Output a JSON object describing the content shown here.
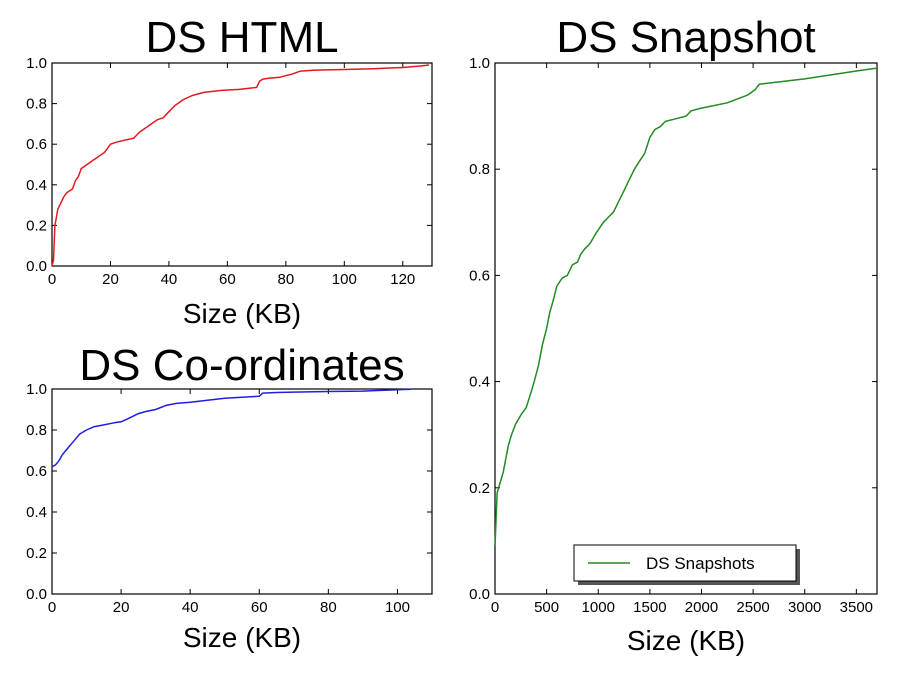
{
  "chart_data": [
    {
      "type": "line",
      "title": "DS HTML",
      "xlabel": "Size (KB)",
      "ylabel": "",
      "xlim": [
        0,
        130
      ],
      "ylim": [
        0.0,
        1.0
      ],
      "xticks": [
        "0",
        "20",
        "40",
        "60",
        "80",
        "100",
        "120"
      ],
      "yticks": [
        "0.0",
        "0.2",
        "0.4",
        "0.6",
        "0.8",
        "1.0"
      ],
      "grid": false,
      "legend": null,
      "color": "#e31a1c",
      "series": [
        {
          "x": [
            0,
            0.5,
            1,
            1.5,
            2,
            3,
            4,
            5,
            6,
            7,
            8,
            9,
            10,
            12,
            14,
            16,
            18,
            19,
            20,
            22,
            25,
            28,
            30,
            32,
            34,
            36,
            38,
            40,
            42,
            45,
            48,
            52,
            58,
            64,
            70,
            71,
            72,
            74,
            78,
            82,
            85,
            90,
            100,
            110,
            120,
            126,
            129
          ],
          "y": [
            0.0,
            0.03,
            0.2,
            0.24,
            0.28,
            0.31,
            0.34,
            0.36,
            0.37,
            0.38,
            0.42,
            0.44,
            0.48,
            0.5,
            0.52,
            0.54,
            0.56,
            0.58,
            0.6,
            0.61,
            0.62,
            0.63,
            0.66,
            0.68,
            0.7,
            0.72,
            0.73,
            0.76,
            0.79,
            0.82,
            0.84,
            0.855,
            0.865,
            0.87,
            0.88,
            0.91,
            0.92,
            0.925,
            0.93,
            0.945,
            0.96,
            0.965,
            0.968,
            0.972,
            0.978,
            0.985,
            0.99
          ]
        }
      ]
    },
    {
      "type": "line",
      "title": "DS Co-ordinates",
      "xlabel": "Size (KB)",
      "ylabel": "",
      "xlim": [
        0,
        110
      ],
      "ylim": [
        0.0,
        1.0
      ],
      "xticks": [
        "0",
        "20",
        "40",
        "60",
        "80",
        "100"
      ],
      "yticks": [
        "0.0",
        "0.2",
        "0.4",
        "0.6",
        "0.8",
        "1.0"
      ],
      "grid": false,
      "legend": null,
      "color": "#1f1fe0",
      "series": [
        {
          "x": [
            0,
            1,
            2,
            3,
            4,
            5,
            6,
            7,
            8,
            9,
            10,
            12,
            15,
            18,
            20,
            22,
            25,
            27,
            30,
            33,
            36,
            40,
            45,
            50,
            55,
            60,
            61,
            65,
            70,
            80,
            90,
            95,
            100,
            104
          ],
          "y": [
            0.62,
            0.63,
            0.65,
            0.68,
            0.7,
            0.72,
            0.74,
            0.76,
            0.78,
            0.79,
            0.8,
            0.815,
            0.825,
            0.835,
            0.84,
            0.855,
            0.88,
            0.89,
            0.9,
            0.92,
            0.93,
            0.935,
            0.945,
            0.955,
            0.96,
            0.965,
            0.98,
            0.983,
            0.985,
            0.988,
            0.99,
            0.993,
            0.996,
            0.999
          ]
        }
      ]
    },
    {
      "type": "line",
      "title": "DS Snapshot",
      "xlabel": "Size (KB)",
      "ylabel": "",
      "xlim": [
        0,
        3700
      ],
      "ylim": [
        0.0,
        1.0
      ],
      "xticks": [
        "0",
        "500",
        "1000",
        "1500",
        "2000",
        "2500",
        "3000",
        "3500"
      ],
      "yticks": [
        "0.0",
        "0.2",
        "0.4",
        "0.6",
        "0.8",
        "1.0"
      ],
      "grid": false,
      "legend": {
        "placement": "lower-center",
        "entries": [
          "DS Snapshots"
        ]
      },
      "color": "#228b22",
      "series": [
        {
          "name": "DS Snapshots",
          "x": [
            0,
            20,
            50,
            80,
            100,
            130,
            160,
            200,
            260,
            300,
            350,
            380,
            420,
            460,
            500,
            530,
            560,
            600,
            650,
            700,
            750,
            800,
            830,
            870,
            920,
            980,
            1050,
            1100,
            1150,
            1200,
            1250,
            1300,
            1350,
            1400,
            1450,
            1500,
            1550,
            1600,
            1650,
            1750,
            1850,
            1900,
            2000,
            2250,
            2450,
            2520,
            2560,
            3000,
            3500,
            3690
          ],
          "y": [
            0.09,
            0.19,
            0.21,
            0.23,
            0.25,
            0.28,
            0.3,
            0.32,
            0.34,
            0.35,
            0.38,
            0.4,
            0.43,
            0.47,
            0.5,
            0.53,
            0.55,
            0.58,
            0.595,
            0.6,
            0.62,
            0.625,
            0.64,
            0.65,
            0.66,
            0.68,
            0.7,
            0.71,
            0.72,
            0.74,
            0.76,
            0.78,
            0.8,
            0.815,
            0.83,
            0.86,
            0.875,
            0.88,
            0.89,
            0.895,
            0.9,
            0.91,
            0.915,
            0.925,
            0.94,
            0.95,
            0.96,
            0.97,
            0.985,
            0.99
          ]
        }
      ]
    }
  ]
}
